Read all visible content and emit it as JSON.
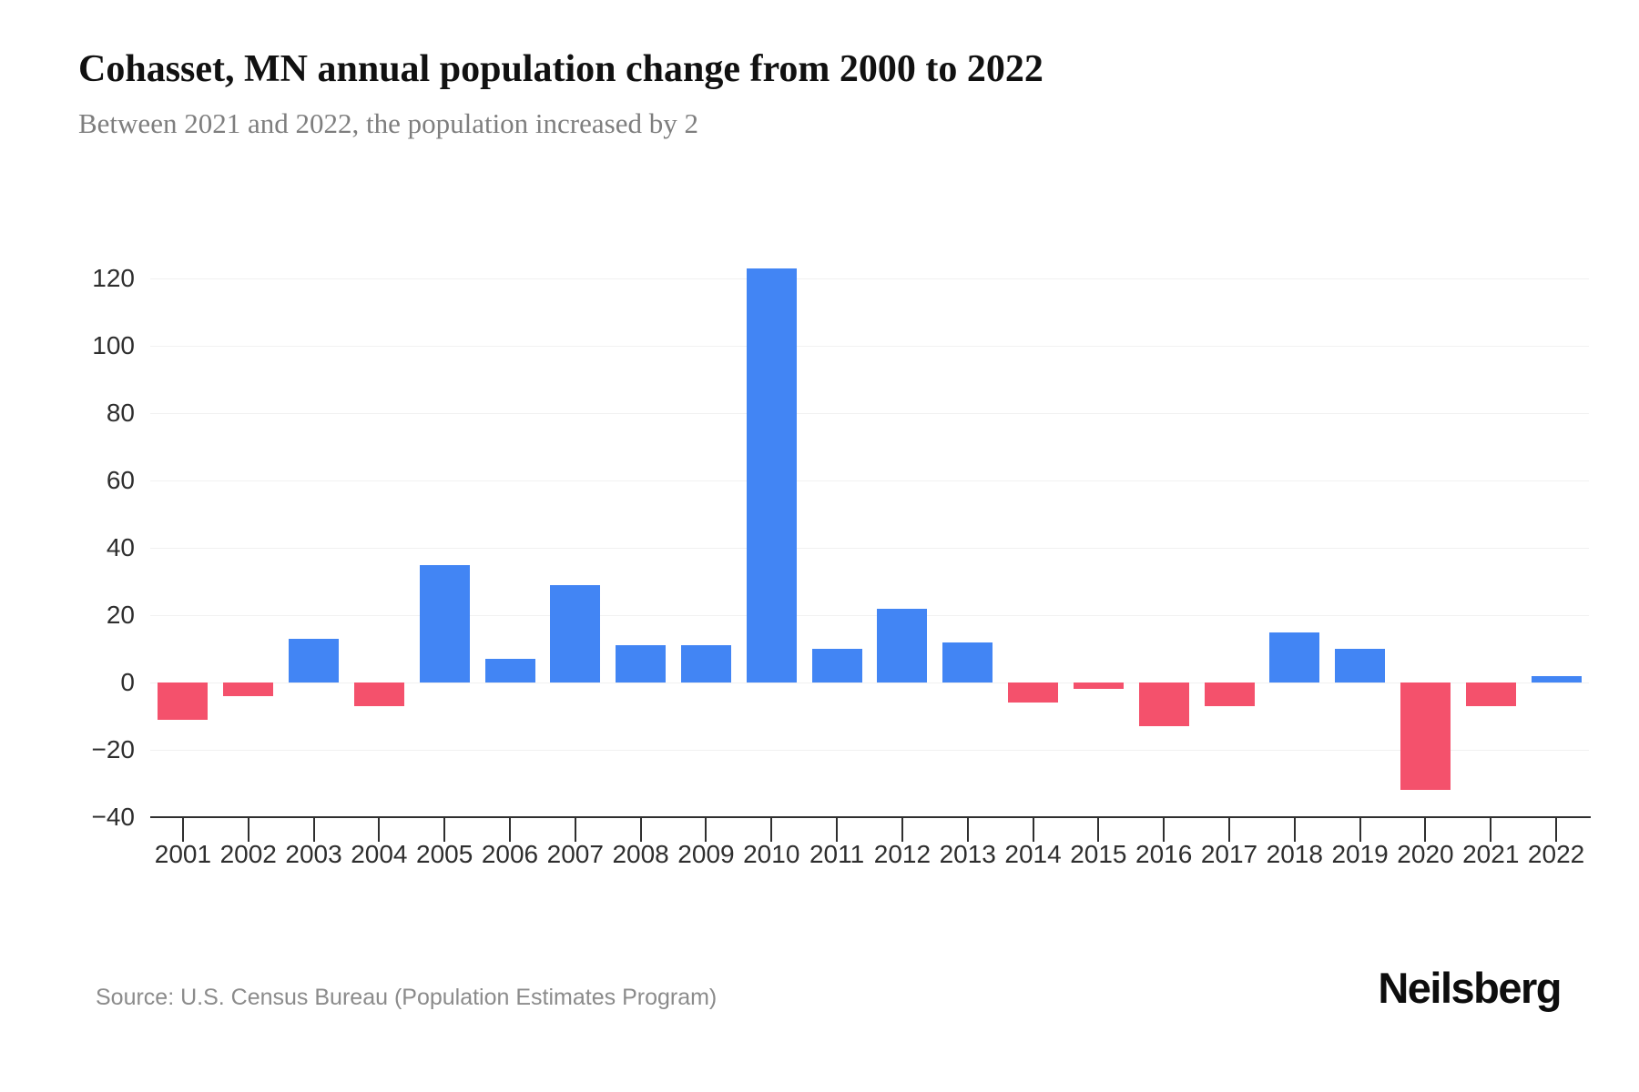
{
  "header": {
    "title": "Cohasset, MN annual population change from 2000 to 2022",
    "subtitle": "Between 2021 and 2022, the population increased by 2"
  },
  "footer": {
    "source": "Source: U.S. Census Bureau (Population Estimates Program)",
    "brand": "Neilsberg"
  },
  "chart_data": {
    "type": "bar",
    "title": "Cohasset, MN annual population change from 2000 to 2022",
    "subtitle": "Between 2021 and 2022, the population increased by 2",
    "xlabel": "",
    "ylabel": "",
    "categories": [
      "2001",
      "2002",
      "2003",
      "2004",
      "2005",
      "2006",
      "2007",
      "2008",
      "2009",
      "2010",
      "2011",
      "2012",
      "2013",
      "2014",
      "2015",
      "2016",
      "2017",
      "2018",
      "2019",
      "2020",
      "2021",
      "2022"
    ],
    "values": [
      -11,
      -4,
      13,
      -7,
      35,
      7,
      29,
      11,
      11,
      123,
      10,
      22,
      12,
      -6,
      -2,
      -13,
      -7,
      15,
      10,
      -32,
      -7,
      2
    ],
    "yticks": [
      120,
      100,
      80,
      60,
      40,
      20,
      0,
      -20,
      -40
    ],
    "ylim": [
      -40,
      130
    ],
    "grid": true,
    "legend_position": "none",
    "colors": {
      "positive": "#4285F4",
      "negative": "#F4516C",
      "gridline": "#f1f1f1",
      "axis": "#2f2f2f"
    }
  }
}
